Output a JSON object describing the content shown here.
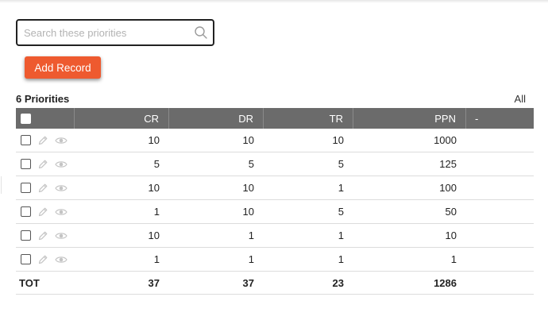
{
  "search": {
    "placeholder": "Search these priorities",
    "value": ""
  },
  "toolbar": {
    "add_label": "Add Record"
  },
  "list": {
    "count_title": "6 Priorities",
    "all_label": "All"
  },
  "table": {
    "columns": [
      "CR",
      "DR",
      "TR",
      "PPN",
      "-"
    ],
    "rows": [
      {
        "cr": "10",
        "dr": "10",
        "tr": "10",
        "ppn": "1000"
      },
      {
        "cr": "5",
        "dr": "5",
        "tr": "5",
        "ppn": "125"
      },
      {
        "cr": "10",
        "dr": "10",
        "tr": "1",
        "ppn": "100"
      },
      {
        "cr": "1",
        "dr": "10",
        "tr": "5",
        "ppn": "50"
      },
      {
        "cr": "10",
        "dr": "1",
        "tr": "1",
        "ppn": "10"
      },
      {
        "cr": "1",
        "dr": "1",
        "tr": "1",
        "ppn": "1"
      }
    ],
    "total": {
      "label": "TOT",
      "cr": "37",
      "dr": "37",
      "tr": "23",
      "ppn": "1286"
    }
  },
  "icons": {
    "search": "search-icon",
    "edit": "pencil-icon",
    "view": "eye-icon"
  },
  "colors": {
    "accent": "#ee5a2f",
    "header_bg": "#6b6b6b",
    "icon_gray": "#c4c4c4"
  }
}
